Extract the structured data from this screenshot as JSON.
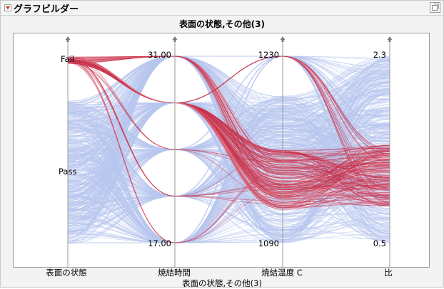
{
  "window": {
    "title": "グラフビルダー"
  },
  "colors": {
    "pass": "#b8c6ee",
    "fail": "#c8324a",
    "axis": "#9a9a9a",
    "panel": "#f3f3f3"
  },
  "icons": {
    "disclosure": "disclosure-triangle-icon",
    "corner": "window-menu-icon",
    "axis_handle": "drag-handle-icon"
  },
  "chart_data": {
    "type": "parallel-plot",
    "title": "表面の状態,その他(3)",
    "xlabel": "表面の状態,その他(3)",
    "axes": [
      {
        "name": "表面の状態",
        "type": "categorical",
        "categories": [
          "Fail",
          "Pass"
        ],
        "tick_labels": [
          "Fail",
          "Pass"
        ]
      },
      {
        "name": "焼結時間",
        "type": "continuous",
        "min": 17.0,
        "max": 31.0,
        "levels": [
          17,
          20.5,
          24,
          27.5,
          31
        ],
        "tick_labels": [
          "31.00",
          "17.00"
        ]
      },
      {
        "name": "焼結温度 C",
        "type": "continuous",
        "min": 1090,
        "max": 1230,
        "tick_labels": [
          "1230",
          "1090"
        ]
      },
      {
        "name": "比",
        "type": "continuous",
        "min": 0.5,
        "max": 2.3,
        "tick_labels": [
          "2.3",
          "0.5"
        ]
      }
    ],
    "series": [
      {
        "name": "Pass",
        "color": "#b8c6ee"
      },
      {
        "name": "Fail",
        "color": "#c8324a"
      }
    ],
    "grid": false,
    "legend": "none"
  }
}
